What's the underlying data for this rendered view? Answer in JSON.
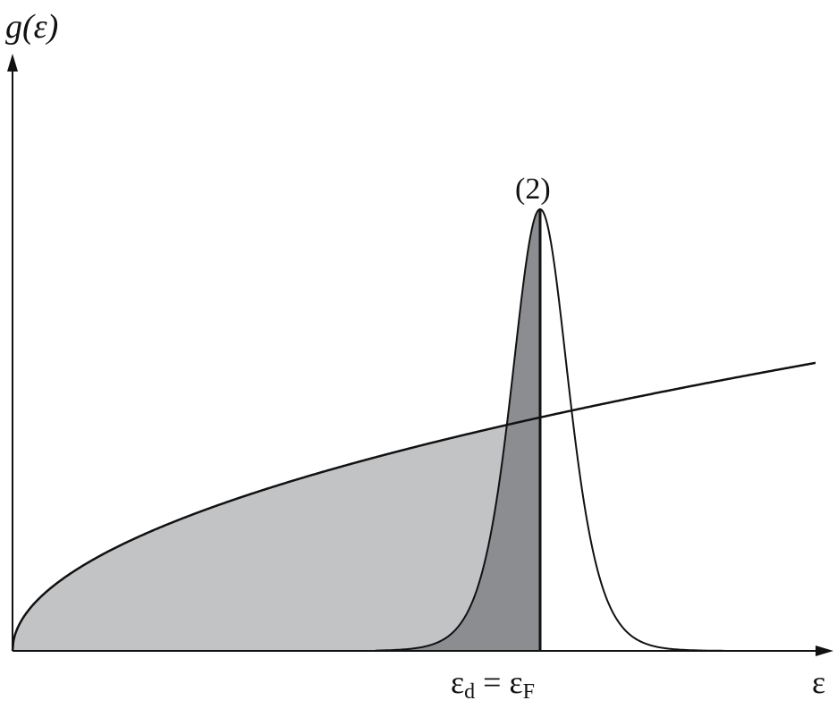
{
  "diagram": {
    "y_axis_label": "g(ε)",
    "x_axis_label": "ε",
    "peak_label": "(2)",
    "fermi_label": {
      "lhs": "ε",
      "lhs_sub": "d",
      "equals": " = ",
      "rhs": "ε",
      "rhs_sub": "F"
    },
    "colors": {
      "band_fill": "#c2c3c5",
      "peak_fill": "#8c8d91",
      "line": "#111111"
    }
  }
}
